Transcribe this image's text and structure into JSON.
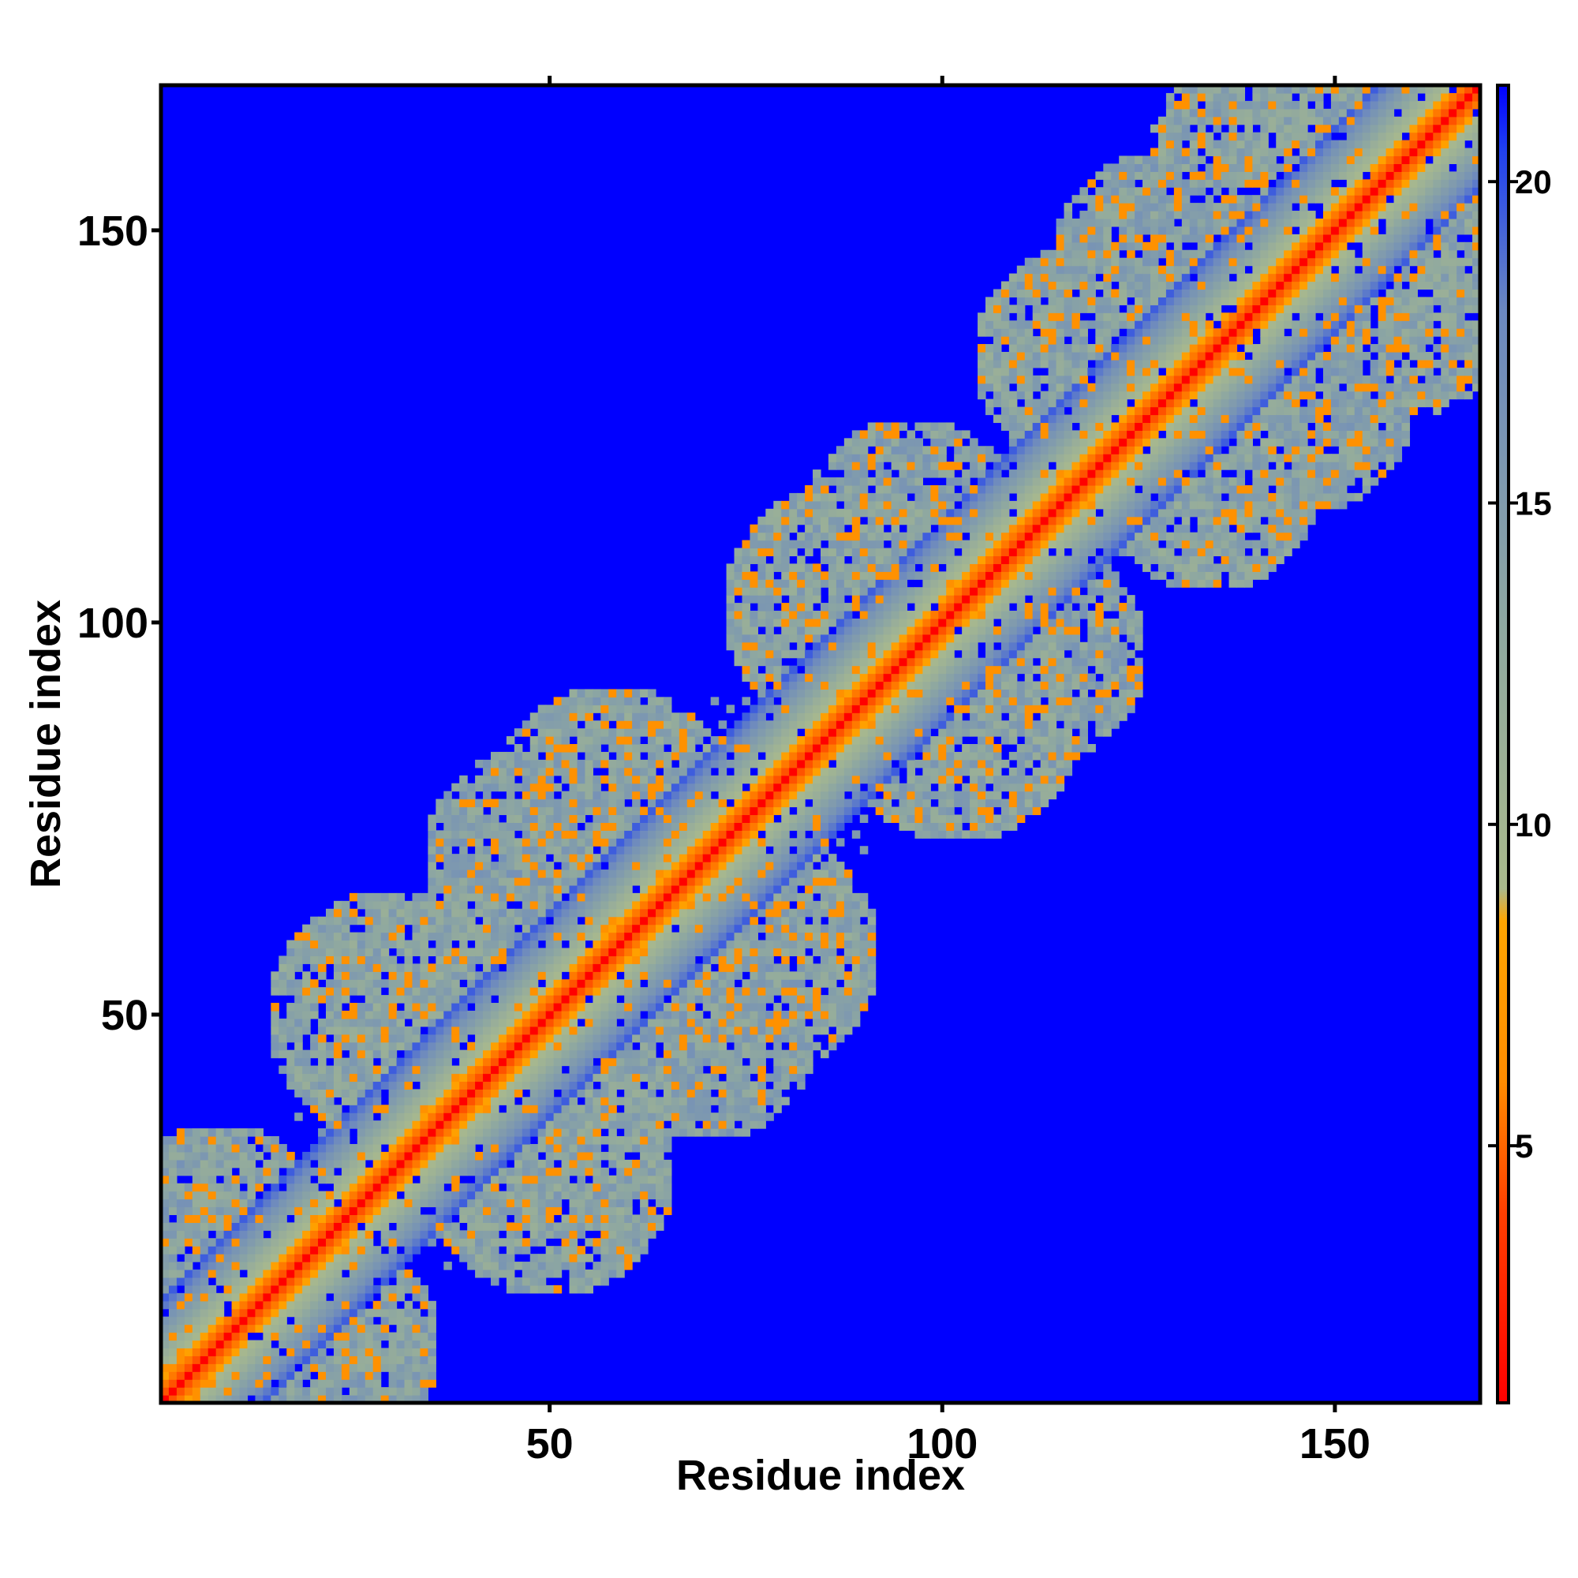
{
  "chart_data": {
    "type": "heatmap",
    "title": "",
    "xlabel": "Residue index",
    "ylabel": "Residue index",
    "n_residues": 168,
    "xlim": [
      1,
      168
    ],
    "ylim": [
      1,
      168
    ],
    "x_ticks": [
      50,
      100,
      150
    ],
    "y_ticks": [
      50,
      100,
      150
    ],
    "x_tick_labels": [
      "50",
      "100",
      "150"
    ],
    "y_tick_labels": [
      "50",
      "100",
      "150"
    ],
    "grid": false,
    "symmetric": true,
    "value_description": "distance between residues, capped at maximum",
    "colorbar": {
      "placement": "right",
      "range": [
        1,
        21.5
      ],
      "ticks": [
        5,
        10,
        15,
        20
      ],
      "tick_labels": [
        "5",
        "10",
        "15",
        "20"
      ],
      "color_stops": [
        {
          "value": 1,
          "color": "#ff0000"
        },
        {
          "value": 4,
          "color": "#ff4000"
        },
        {
          "value": 6,
          "color": "#ff8c00"
        },
        {
          "value": 8.5,
          "color": "#ffa500"
        },
        {
          "value": 9,
          "color": "#a9b98c"
        },
        {
          "value": 13,
          "color": "#8fa8a0"
        },
        {
          "value": 18,
          "color": "#6b88c0"
        },
        {
          "value": 20.5,
          "color": "#2040f0"
        },
        {
          "value": 21.5,
          "color": "#0000ff"
        }
      ]
    },
    "colors": {
      "background_cell": "#0000ff",
      "diagonal": "#ff0000",
      "near_contact": "#ffa500",
      "mid_distance": "#a9b98c",
      "far_contact": "#7d96b8"
    },
    "band": {
      "diagonal_value": 1.0,
      "near_offset_values": [
        4.5,
        5.5,
        6.5,
        8.0,
        9.5,
        10.5,
        11.5,
        13.0,
        14.0,
        15.0,
        16.0,
        17.5,
        18.5,
        19.5
      ],
      "cap_value": 21.5
    },
    "contact_clusters": [
      {
        "i": 8,
        "j": 22,
        "extent": 14,
        "value": 13.5
      },
      {
        "i": 30,
        "j": 50,
        "extent": 16,
        "value": 13.0
      },
      {
        "i": 48,
        "j": 70,
        "extent": 14,
        "value": 13.5
      },
      {
        "i": 58,
        "j": 76,
        "extent": 16,
        "value": 13.0
      },
      {
        "i": 88,
        "j": 102,
        "extent": 16,
        "value": 13.0
      },
      {
        "i": 96,
        "j": 112,
        "extent": 14,
        "value": 13.5
      },
      {
        "i": 118,
        "j": 134,
        "extent": 14,
        "value": 13.0
      },
      {
        "i": 128,
        "j": 146,
        "extent": 14,
        "value": 13.5
      },
      {
        "i": 142,
        "j": 158,
        "extent": 16,
        "value": 13.0
      },
      {
        "i": 150,
        "j": 166,
        "extent": 14,
        "value": 13.5
      }
    ]
  }
}
